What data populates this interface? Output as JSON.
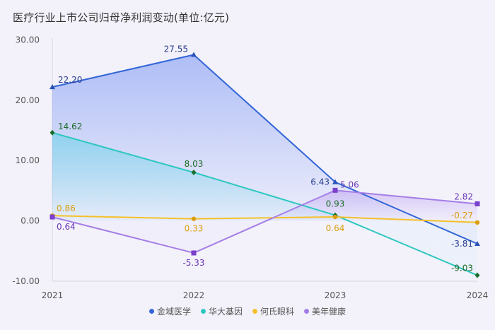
{
  "title": "医疗行业上市公司归母净利润变动(单位:亿元)",
  "chart_data": {
    "type": "line",
    "title": "医疗行业上市公司归母净利润变动(单位:亿元)",
    "categories": [
      "2021",
      "2022",
      "2023",
      "2024"
    ],
    "ylim": [
      -10,
      30
    ],
    "yticks": [
      "30.00",
      "20.00",
      "10.00",
      "0.00",
      "-10.00"
    ],
    "grid": false,
    "legend_position": "bottom",
    "series": [
      {
        "name": "金域医学",
        "values": [
          22.2,
          27.55,
          6.43,
          -3.81
        ],
        "labels": [
          "22.20",
          "27.55",
          "6.43",
          "-3.81"
        ],
        "color": "#3366d6",
        "marker": "triangle"
      },
      {
        "name": "华大基因",
        "values": [
          14.62,
          8.03,
          0.93,
          -9.03
        ],
        "labels": [
          "14.62",
          "8.03",
          "0.93",
          "-9.03"
        ],
        "color": "#2ec7c0",
        "marker": "diamond"
      },
      {
        "name": "何氏眼科",
        "values": [
          0.86,
          0.33,
          0.64,
          -0.27
        ],
        "labels": [
          "0.86",
          "0.33",
          "0.64",
          "-0.27"
        ],
        "color": "#f5c02a",
        "marker": "circle"
      },
      {
        "name": "美年健康",
        "values": [
          0.64,
          -5.33,
          5.06,
          2.82
        ],
        "labels": [
          "0.64",
          "-5.33",
          "5.06",
          "2.82"
        ],
        "color": "#a57de6",
        "marker": "square"
      }
    ]
  }
}
